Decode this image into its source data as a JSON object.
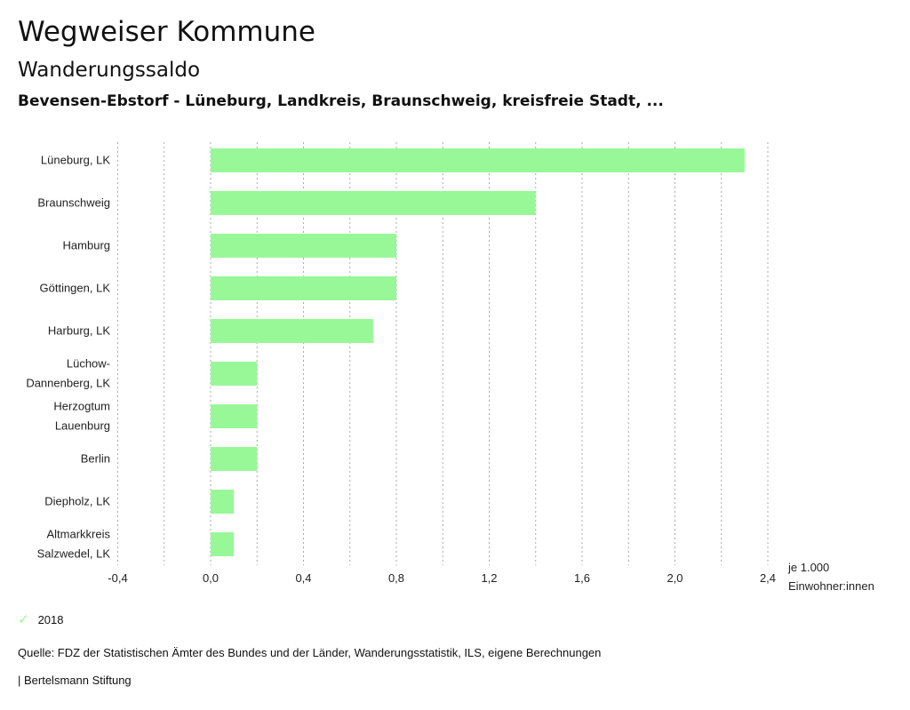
{
  "header": {
    "title": "Wegweiser Kommune",
    "subtitle": "Wanderungssaldo",
    "regions": "Bevensen-Ebstorf - Lüneburg, Landkreis, Braunschweig, kreisfreie Stadt, ..."
  },
  "chart_data": {
    "type": "bar",
    "orientation": "horizontal",
    "categories": [
      [
        "Lüneburg, LK"
      ],
      [
        "Braunschweig"
      ],
      [
        "Hamburg"
      ],
      [
        "Göttingen, LK"
      ],
      [
        "Harburg, LK"
      ],
      [
        "Lüchow-",
        "Dannenberg, LK"
      ],
      [
        "Herzogtum",
        "Lauenburg"
      ],
      [
        "Berlin"
      ],
      [
        "Diepholz, LK"
      ],
      [
        "Altmarkkreis",
        "Salzwedel, LK"
      ]
    ],
    "series": [
      {
        "name": "2018",
        "values": [
          2.3,
          1.4,
          0.8,
          0.8,
          0.7,
          0.2,
          0.2,
          0.2,
          0.1,
          0.1
        ],
        "color": "#98f898"
      }
    ],
    "xlim": [
      -0.4,
      2.4
    ],
    "xticks": [
      -0.4,
      0.0,
      0.4,
      0.8,
      1.2,
      1.6,
      2.0,
      2.4
    ],
    "xtick_labels": [
      "-0,4",
      "0,0",
      "0,4",
      "0,8",
      "1,2",
      "1,6",
      "2,0",
      "2,4"
    ],
    "xlabel": [
      "je 1.000",
      "Einwohner:innen"
    ],
    "grid": "vertical dotted every 0.2",
    "legend_position": "bottom-left"
  },
  "legend": {
    "label": "2018",
    "icon": "check-icon"
  },
  "footer": {
    "source": "Quelle: FDZ der Statistischen Ämter des Bundes und der Länder, Wanderungsstatistik, ILS, eigene Berechnungen",
    "brand": "| Bertelsmann Stiftung"
  }
}
